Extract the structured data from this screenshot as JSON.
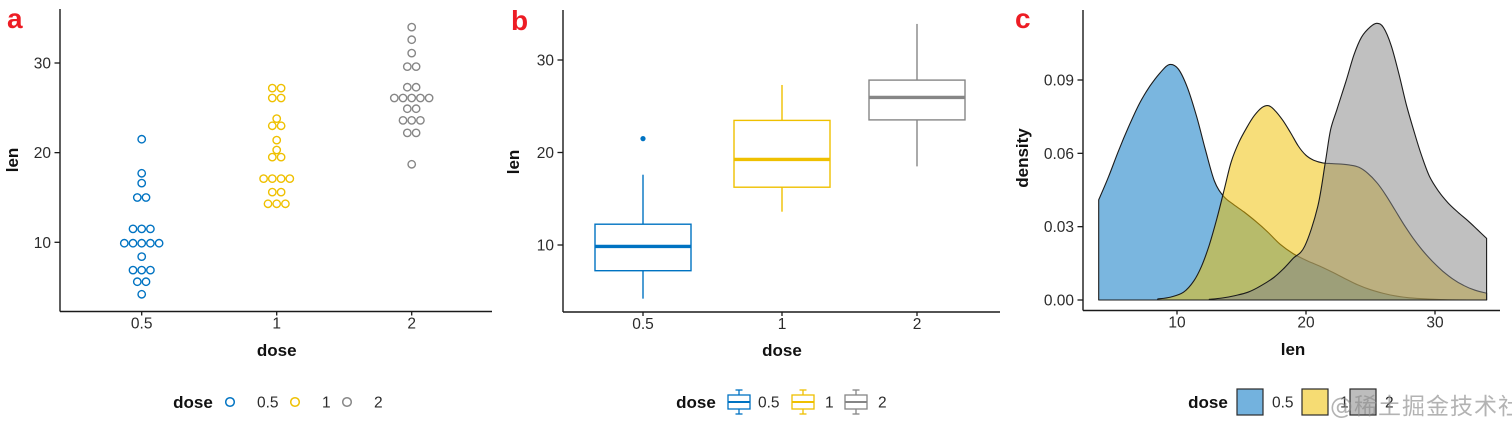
{
  "watermark": {
    "text": "@稀土掘金技术社区"
  },
  "styles": {
    "panel_label_color": "#ED1C24",
    "axis_color": "#1a1a1a",
    "tick_label_color": "#2b2b2b",
    "density_outline_color": "#1b1b1b",
    "series_colors": [
      "#0073C2",
      "#EFC000",
      "#868686"
    ],
    "density_fill_opacity": 0.52
  },
  "chart_data": [
    {
      "type": "scatter",
      "variant": "dotplot",
      "panel_label": "a",
      "xlabel": "dose",
      "ylabel": "len",
      "x_categories": [
        "0.5",
        "1",
        "2"
      ],
      "y_ticks": [
        "10",
        "20",
        "30"
      ],
      "ylim": [
        2.5,
        36
      ],
      "grid": false,
      "legend": {
        "title": "dose",
        "position": "bottom",
        "glyph": "open-circle",
        "labels": [
          "0.5",
          "1",
          "2"
        ]
      },
      "point_stacks": {
        "0.5": [
          [
            4.2,
            1
          ],
          [
            5.6,
            2
          ],
          [
            6.9,
            3
          ],
          [
            8.4,
            1
          ],
          [
            9.9,
            5
          ],
          [
            11.5,
            3
          ],
          [
            15.0,
            2
          ],
          [
            16.6,
            1
          ],
          [
            17.7,
            1
          ],
          [
            21.5,
            1
          ]
        ],
        "1": [
          [
            14.3,
            3
          ],
          [
            15.6,
            2
          ],
          [
            17.1,
            4
          ],
          [
            19.5,
            2
          ],
          [
            20.3,
            1
          ],
          [
            21.4,
            1
          ],
          [
            23.0,
            2
          ],
          [
            23.8,
            1
          ],
          [
            26.1,
            2
          ],
          [
            27.2,
            2
          ]
        ],
        "2": [
          [
            18.7,
            1
          ],
          [
            22.2,
            2
          ],
          [
            23.6,
            3
          ],
          [
            24.9,
            2
          ],
          [
            26.1,
            5
          ],
          [
            27.3,
            2
          ],
          [
            29.6,
            2
          ],
          [
            31.1,
            1
          ],
          [
            32.6,
            1
          ],
          [
            34.0,
            1
          ]
        ]
      }
    },
    {
      "type": "boxplot",
      "panel_label": "b",
      "xlabel": "dose",
      "ylabel": "len",
      "x_categories": [
        "0.5",
        "1",
        "2"
      ],
      "y_ticks": [
        "10",
        "20",
        "30"
      ],
      "ylim": [
        2.5,
        36
      ],
      "grid": false,
      "legend": {
        "title": "dose",
        "position": "bottom",
        "glyph": "boxplot",
        "labels": [
          "0.5",
          "1",
          "2"
        ]
      },
      "boxes": [
        {
          "category": "0.5",
          "whisker_low": 4.2,
          "q1": 7.225,
          "median": 9.85,
          "q3": 12.25,
          "whisker_high": 17.6,
          "outliers": [
            21.5
          ]
        },
        {
          "category": "1",
          "whisker_low": 13.6,
          "q1": 16.25,
          "median": 19.25,
          "q3": 23.475,
          "whisker_high": 27.3,
          "outliers": []
        },
        {
          "category": "2",
          "whisker_low": 18.5,
          "q1": 23.525,
          "median": 25.95,
          "q3": 27.825,
          "whisker_high": 33.9,
          "outliers": []
        }
      ]
    },
    {
      "type": "area",
      "variant": "density",
      "panel_label": "c",
      "xlabel": "len",
      "ylabel": "density",
      "x_ticks": [
        "10",
        "20",
        "30"
      ],
      "y_ticks": [
        "0.00",
        "0.03",
        "0.06",
        "0.09"
      ],
      "xlim": [
        2.8,
        35.5
      ],
      "ylim": [
        0,
        0.118
      ],
      "grid": false,
      "legend": {
        "title": "dose",
        "position": "bottom",
        "glyph": "filled-square",
        "labels": [
          "0.5",
          "1",
          "2"
        ]
      },
      "series": [
        {
          "name": "0.5",
          "points": [
            [
              3.93,
              0.041
            ],
            [
              4.7,
              0.0505
            ],
            [
              5.5,
              0.0615
            ],
            [
              6.3,
              0.0715
            ],
            [
              7.1,
              0.0805
            ],
            [
              7.9,
              0.0875
            ],
            [
              8.7,
              0.093
            ],
            [
              9.4,
              0.0963
            ],
            [
              10.1,
              0.0945
            ],
            [
              10.8,
              0.087
            ],
            [
              11.5,
              0.0755
            ],
            [
              12.2,
              0.0615
            ],
            [
              12.9,
              0.0487
            ],
            [
              13.6,
              0.0425
            ],
            [
              14.4,
              0.039
            ],
            [
              15.2,
              0.036
            ],
            [
              16.1,
              0.0322
            ],
            [
              17,
              0.028
            ],
            [
              18,
              0.0228
            ],
            [
              19,
              0.019
            ],
            [
              20,
              0.0163
            ],
            [
              21,
              0.014
            ],
            [
              22,
              0.0115
            ],
            [
              23,
              0.0088
            ],
            [
              24,
              0.0062
            ],
            [
              25,
              0.0042
            ],
            [
              26,
              0.0027
            ],
            [
              27,
              0.0016
            ],
            [
              28,
              0.0009
            ],
            [
              29.5,
              0.0004
            ],
            [
              31,
              0.0001
            ],
            [
              32.5,
              0
            ]
          ]
        },
        {
          "name": "1",
          "points": [
            [
              8.5,
              0.0004
            ],
            [
              9.5,
              0.0012
            ],
            [
              10.5,
              0.0032
            ],
            [
              11.3,
              0.0078
            ],
            [
              11.9,
              0.0138
            ],
            [
              12.5,
              0.0225
            ],
            [
              13.1,
              0.0335
            ],
            [
              13.7,
              0.046
            ],
            [
              14.2,
              0.0565
            ],
            [
              14.8,
              0.0645
            ],
            [
              15.4,
              0.0705
            ],
            [
              16,
              0.0755
            ],
            [
              16.6,
              0.0788
            ],
            [
              17.1,
              0.0795
            ],
            [
              17.6,
              0.0775
            ],
            [
              18.2,
              0.0735
            ],
            [
              18.8,
              0.0685
            ],
            [
              19.4,
              0.063
            ],
            [
              20,
              0.0592
            ],
            [
              20.6,
              0.0572
            ],
            [
              21.3,
              0.0561
            ],
            [
              22,
              0.0558
            ],
            [
              22.7,
              0.0556
            ],
            [
              23.4,
              0.0552
            ],
            [
              24.1,
              0.0543
            ],
            [
              24.8,
              0.0518
            ],
            [
              25.5,
              0.048
            ],
            [
              26.2,
              0.0428
            ],
            [
              26.9,
              0.0368
            ],
            [
              27.6,
              0.0308
            ],
            [
              28.3,
              0.0253
            ],
            [
              29,
              0.0205
            ],
            [
              29.8,
              0.0158
            ],
            [
              30.6,
              0.0118
            ],
            [
              31.4,
              0.0085
            ],
            [
              32.2,
              0.006
            ],
            [
              33.1,
              0.004
            ],
            [
              34,
              0.0028
            ]
          ]
        },
        {
          "name": "2",
          "points": [
            [
              12.5,
              0.0003
            ],
            [
              13.5,
              0.0008
            ],
            [
              14.5,
              0.0018
            ],
            [
              15.5,
              0.0032
            ],
            [
              16.5,
              0.0058
            ],
            [
              17.5,
              0.0092
            ],
            [
              18.3,
              0.013
            ],
            [
              19,
              0.017
            ],
            [
              19.9,
              0.022
            ],
            [
              20.9,
              0.038
            ],
            [
              21.5,
              0.0565
            ],
            [
              21.9,
              0.0695
            ],
            [
              22.4,
              0.078
            ],
            [
              23.1,
              0.0895
            ],
            [
              23.7,
              0.1
            ],
            [
              24.3,
              0.1075
            ],
            [
              25,
              0.1118
            ],
            [
              25.5,
              0.1132
            ],
            [
              26,
              0.1115
            ],
            [
              26.6,
              0.1042
            ],
            [
              27.2,
              0.0925
            ],
            [
              27.8,
              0.0795
            ],
            [
              28.4,
              0.0685
            ],
            [
              29,
              0.0585
            ],
            [
              29.6,
              0.0503
            ],
            [
              30.3,
              0.0443
            ],
            [
              31,
              0.0398
            ],
            [
              31.8,
              0.0358
            ],
            [
              32.6,
              0.0322
            ],
            [
              33.3,
              0.0287
            ],
            [
              34,
              0.0252
            ]
          ]
        }
      ]
    }
  ]
}
